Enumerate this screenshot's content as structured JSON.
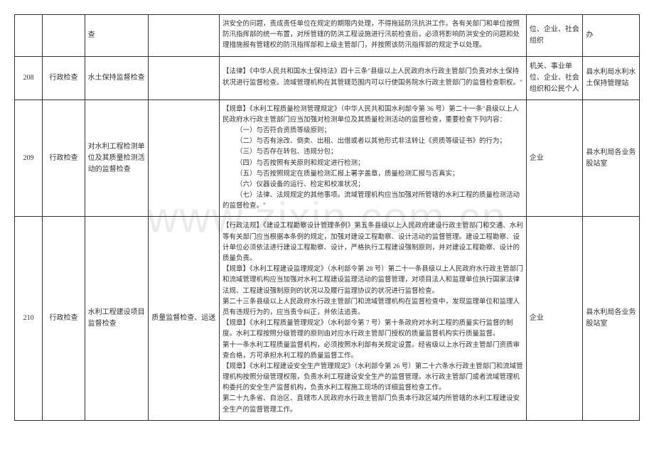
{
  "watermark": "www.zixin.com.cn",
  "table": {
    "rows": [
      {
        "num": "",
        "type": "",
        "name": "查",
        "content": "",
        "basis": "洪安全的问题，责成责任单位在规定的期限内处理，不得拖延防汛抗洪工作。各有关部门和单位按照防汛指挥部的统一布置，对所管辖的防洪工程设施进行汛前检查后，必须将影响防洪安全的问题和处理措施报有管辖权的防汛指挥部和上级主管部门，并按照该防汛指挥部的规定予以处理。",
        "subject": "位、企业、社会组织",
        "dept": "办"
      },
      {
        "num": "208",
        "type": "行政检查",
        "name": "水土保持监督检查",
        "content": "",
        "basis": "【法律】《中华人民共和国水土保持法》四十三条\"县级以上人民政府水行政主管部门负责对水土保持状况进行监督检查。流域管理机构在其管辖范围内可以行使国务院水行政主管部门的监督检查职权。\"",
        "subject": "机关、事业单位、企业、社会组织和公民个人",
        "dept": "县水利局水利水土保持管理站"
      },
      {
        "num": "209",
        "type": "行政检查",
        "name": "对水利工程检测单位及其质量检测活动的监督检查",
        "content": "",
        "basis_lines": [
          "【规章】《水利工程质量检测管理规定》（中华人民共和国水利部令第 36 号）第二十一条\"县级以上人民政府水行政主管部门应当加强对检测单位及其质量检测活动的监督检查，重要检查下列内容：",
          "（一）与否符合资质等级原则；",
          "（二）与否有涂改、倒卖、出租、出借或者以其他形式非法转让《资质等级证书》的行为；",
          "（三）与否存在转包、违规分包；",
          "（四）与否按照有关原则和规定进行检测；",
          "（五）与否按照规定在质量检测汇报上署字盖章，质量检测汇报与否真实；",
          "（六）仪器设备的运行、检定和校准状况；",
          "（七）法律、法规规定的其他事项。流域管理机构应当加强对所管辖的水利工程的质量检测活动的监督检查。\""
        ],
        "subject": "企业",
        "dept": "县水利局各业务股站室"
      },
      {
        "num": "210",
        "type": "行政检查",
        "name": "水利工程建设项目监督检查",
        "content": "质量监督检查、运送",
        "basis_lines": [
          "【行政法规】《建设工程勘察设计管理条例》第五条县级以上人民政府建设行政主管部门和交通、水利等有关部门应当根据本条例的规定，加强对建设工程勘察、设计活动的监督管理。建设工程勘察、设计单位必须依法进行建设工程勘察、设计，严格执行工程建设强制原则，并对建设工程勘察、设计的质量负责。",
          "【规章】《水利工程建设监理规定》（水利部令第 28 号）第二十一条县级以上人民政府水行政主管部门和流域管理机构应当加强对水利工程建设监理活动的监督管理，对项目法人和监理单位执行国家法律法规、工程建设强制原则的状况以及履行监理协议的状况进行监督检查。",
          "第二十三条县级以上人民政府水行政主管部门和流域管理机构在监督检查中，发现监理单位和监理人员有违规行为的，应当责令纠正，并依法追责。",
          "【规章】《水利工程质量管理规定》（水利部令第 7 号）第十条政府对水利工程的质量实行监督的制度。水利工程按照分级管理的原则由对应水行政主管部门授权的质量监督机构实行质量监督。",
          "第十一条水利工程质量监督机构，必须按照水利部有关规定设置。经省级以上水行政主管部门资质审查合格，方可承担水利工程的质量监督工作。",
          "【规章】《水利工程建设安全生产管理规定》（水利部令第 26 号）第二十六条水行政主管部门和流域管理机构按照分级管理权限，负责水利工程建设安全生产的监督管理。水行政主管部门或者流域管理机构委托的安全生产监督机构，负责水利工程施工现场的详细监督检查工作。",
          "第二十九条省、自治区、直辖市人民政府水行政主管部门负责本行政区域内所管辖的水利工程建设安全生产的监督管理工作。"
        ],
        "subject": "企业",
        "dept": "县水利局各业务股站室"
      }
    ]
  }
}
